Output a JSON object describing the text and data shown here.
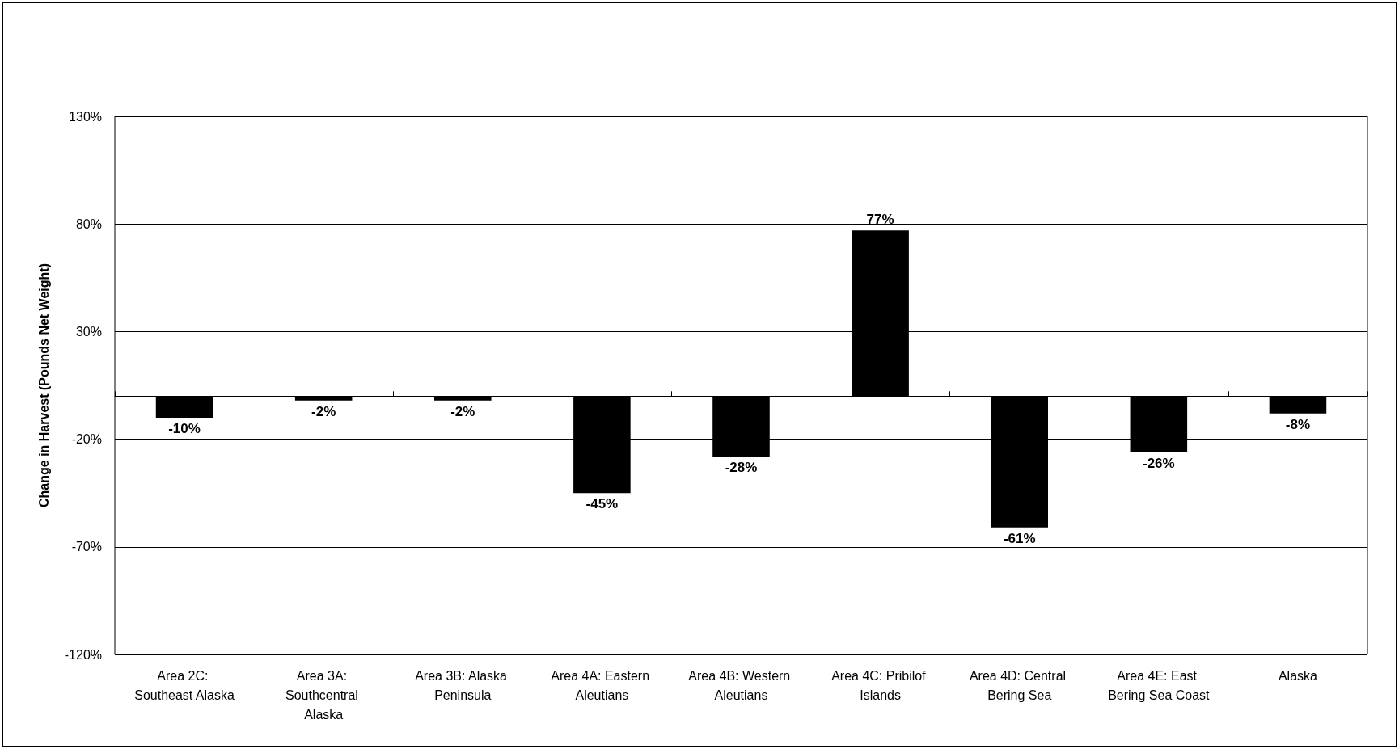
{
  "chart_data": {
    "type": "bar",
    "ylabel": "Change in Harvest (Pounds Net Weight)",
    "categories": [
      "Area 2C: Southeast Alaska",
      "Area 3A: Southcentral Alaska",
      "Area 3B: Alaska Peninsula",
      "Area 4A: Eastern Aleutians",
      "Area 4B: Western Aleutians",
      "Area 4C: Pribilof Islands",
      "Area 4D: Central Bering Sea",
      "Area 4E: East Bering Sea Coast",
      "Alaska"
    ],
    "values": [
      -10,
      -2,
      -2,
      -45,
      -28,
      77,
      -61,
      -26,
      -8
    ],
    "value_labels": [
      "-10%",
      "-2%",
      "-2%",
      "-45%",
      "-28%",
      "77%",
      "-61%",
      "-26%",
      "-8%"
    ],
    "color": "#000000",
    "ylim": [
      -120,
      130
    ],
    "yticks": [
      {
        "value": -120,
        "label": "-120%"
      },
      {
        "value": -70,
        "label": "-70%"
      },
      {
        "value": -20,
        "label": "-20%"
      },
      {
        "value": 30,
        "label": "30%"
      },
      {
        "value": 80,
        "label": "80%"
      },
      {
        "value": 130,
        "label": "130%"
      }
    ],
    "grid": "y"
  }
}
